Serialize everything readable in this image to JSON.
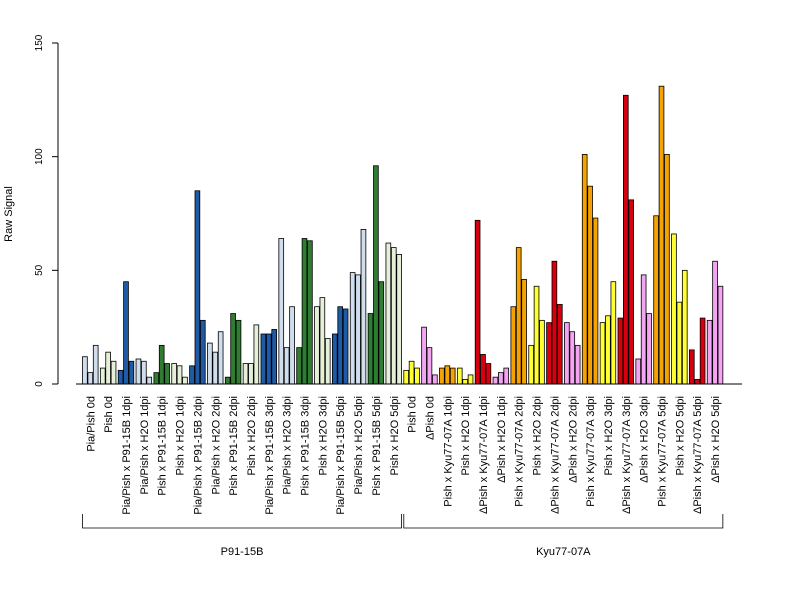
{
  "chart_data": {
    "type": "bar",
    "ylabel": "Raw Signal",
    "ylim": [
      0,
      150
    ],
    "yticks": [
      0,
      50,
      100,
      150
    ],
    "colors": {
      "p_light": "#cfdded",
      "p_white": "#f4f6fb",
      "p_blue": "#1f5ba5",
      "p_green": "#2e7d32",
      "p_pale_green": "#e6f0d8",
      "k_yellow": "#ffff33",
      "k_orange": "#f5a300",
      "k_red": "#d7000f",
      "k_pink": "#f3a4f3"
    },
    "categories": [
      {
        "label": "Pia/Pish 0d",
        "color": "p_light",
        "values": [
          12,
          5,
          17
        ]
      },
      {
        "label": "Pish 0d",
        "color": "p_pale_green",
        "values": [
          7,
          14,
          10
        ]
      },
      {
        "label": "Pia/Pish x P91-15B 1dpi",
        "color": "p_blue",
        "values": [
          6,
          45,
          10
        ]
      },
      {
        "label": "Pia/Pish x H2O 1dpi",
        "color": "p_light",
        "values": [
          11,
          10,
          3
        ]
      },
      {
        "label": "Pish x P91-15B 1dpi",
        "color": "p_green",
        "values": [
          5,
          17,
          9
        ]
      },
      {
        "label": "Pish x H2O 1dpi",
        "color": "p_pale_green",
        "values": [
          9,
          8,
          3
        ]
      },
      {
        "label": "Pia/Pish x P91-15B 2dpi",
        "color": "p_blue",
        "values": [
          8,
          85,
          28
        ]
      },
      {
        "label": "Pia/Pish x H2O 2dpi",
        "color": "p_light",
        "values": [
          18,
          14,
          23
        ]
      },
      {
        "label": "Pish x P91-15B 2dpi",
        "color": "p_green",
        "values": [
          3,
          31,
          28
        ]
      },
      {
        "label": "Pish x H2O 2dpi",
        "color": "p_pale_green",
        "values": [
          9,
          9,
          26
        ]
      },
      {
        "label": "Pia/Pish x P91-15B 3dpi",
        "color": "p_blue",
        "values": [
          22,
          22,
          24
        ]
      },
      {
        "label": "Pia/Pish x H2O 3dpi",
        "color": "p_light",
        "values": [
          64,
          16,
          34
        ]
      },
      {
        "label": "Pish x P91-15B 3dpi",
        "color": "p_green",
        "values": [
          16,
          64,
          63
        ]
      },
      {
        "label": "Pish x H2O 3dpi",
        "color": "p_pale_green",
        "values": [
          34,
          38,
          20
        ]
      },
      {
        "label": "Pia/Pish x P91-15B 5dpi",
        "color": "p_blue",
        "values": [
          22,
          34,
          33
        ]
      },
      {
        "label": "Pia/Pish x H2O 5dpi",
        "color": "p_light",
        "values": [
          49,
          48,
          68
        ]
      },
      {
        "label": "Pish x P91-15B 5dpi",
        "color": "p_green",
        "values": [
          31,
          96,
          45
        ]
      },
      {
        "label": "Pish x H2O 5dpi",
        "color": "p_pale_green",
        "values": [
          62,
          60,
          57
        ]
      },
      {
        "label": "Pish 0d",
        "color": "k_yellow",
        "values": [
          6,
          10,
          7
        ]
      },
      {
        "label": "ΔPish 0d",
        "color": "k_pink",
        "values": [
          25,
          16,
          4
        ]
      },
      {
        "label": "Pish x Kyu77-07A 1dpi",
        "color": "k_orange",
        "values": [
          7,
          8,
          7
        ]
      },
      {
        "label": "Pish x H2O 1dpi",
        "color": "k_yellow",
        "values": [
          7,
          2,
          4
        ]
      },
      {
        "label": "ΔPish x Kyu77-07A 1dpi",
        "color": "k_red",
        "values": [
          72,
          13,
          9
        ]
      },
      {
        "label": "ΔPish x H2O 1dpi",
        "color": "k_pink",
        "values": [
          3,
          5,
          7
        ]
      },
      {
        "label": "Pish x Kyu77-07A 2dpi",
        "color": "k_orange",
        "values": [
          34,
          60,
          46
        ]
      },
      {
        "label": "Pish x H2O 2dpi",
        "color": "k_yellow",
        "values": [
          17,
          43,
          28
        ]
      },
      {
        "label": "ΔPish x Kyu77-07A 2dpi",
        "color": "k_red",
        "values": [
          27,
          54,
          35
        ]
      },
      {
        "label": "ΔPish x H2O 2dpi",
        "color": "k_pink",
        "values": [
          27,
          23,
          17
        ]
      },
      {
        "label": "Pish x Kyu77-07A 3dpi",
        "color": "k_orange",
        "values": [
          101,
          87,
          73
        ]
      },
      {
        "label": "Pish x H2O 3dpi",
        "color": "k_yellow",
        "values": [
          27,
          30,
          45
        ]
      },
      {
        "label": "ΔPish x Kyu77-07A 3dpi",
        "color": "k_red",
        "values": [
          29,
          127,
          81
        ]
      },
      {
        "label": "ΔPish x H2O 3dpi",
        "color": "k_pink",
        "values": [
          11,
          48,
          31
        ]
      },
      {
        "label": "Pish x Kyu77-07A 5dpi",
        "color": "k_orange",
        "values": [
          74,
          131,
          101
        ]
      },
      {
        "label": "Pish x H2O 5dpi",
        "color": "k_yellow",
        "values": [
          66,
          36,
          50
        ]
      },
      {
        "label": "ΔPish x Kyu77-07A 5dpi",
        "color": "k_red",
        "values": [
          15,
          2,
          29
        ]
      },
      {
        "label": "ΔPish x H2O 5dpi",
        "color": "k_pink",
        "values": [
          28,
          54,
          43
        ]
      }
    ],
    "groups": [
      {
        "label": "P91-15B",
        "first": 0,
        "last": 17
      },
      {
        "label": "Kyu77-07A",
        "first": 18,
        "last": 35
      }
    ]
  }
}
